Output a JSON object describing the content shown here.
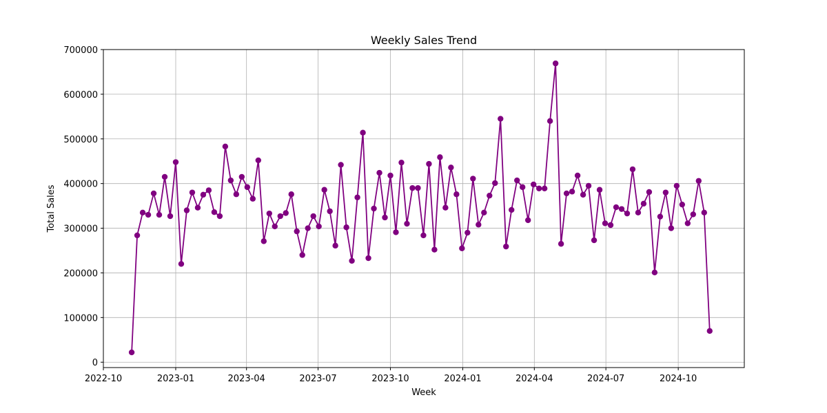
{
  "chart_data": {
    "type": "line",
    "title": "Weekly Sales Trend",
    "xlabel": "Week",
    "ylabel": "Total Sales",
    "x_axis_type": "date",
    "xlim": [
      "2022-10-01",
      "2024-12-24"
    ],
    "ylim": [
      -12000,
      700000
    ],
    "x_ticks": [
      "2022-10-01",
      "2023-01-01",
      "2023-04-01",
      "2023-07-01",
      "2023-10-01",
      "2024-01-01",
      "2024-04-01",
      "2024-07-01",
      "2024-10-01"
    ],
    "x_tick_labels": [
      "2022-10",
      "2023-01",
      "2023-04",
      "2023-07",
      "2023-10",
      "2024-01",
      "2024-04",
      "2024-07",
      "2024-10"
    ],
    "y_ticks": [
      0,
      100000,
      200000,
      300000,
      400000,
      500000,
      600000,
      700000
    ],
    "y_tick_labels": [
      "0",
      "100000",
      "200000",
      "300000",
      "400000",
      "500000",
      "600000",
      "700000"
    ],
    "grid": true,
    "color": "#800080",
    "marker": "circle",
    "series": [
      {
        "dates": [
          "2022-11-06",
          "2022-11-13",
          "2022-11-20",
          "2022-11-27",
          "2022-12-04",
          "2022-12-11",
          "2022-12-18",
          "2022-12-25",
          "2023-01-01",
          "2023-01-08",
          "2023-01-15",
          "2023-01-22",
          "2023-01-29",
          "2023-02-05",
          "2023-02-12",
          "2023-02-19",
          "2023-02-26",
          "2023-03-05",
          "2023-03-12",
          "2023-03-19",
          "2023-03-26",
          "2023-04-02",
          "2023-04-09",
          "2023-04-16",
          "2023-04-23",
          "2023-04-30",
          "2023-05-07",
          "2023-05-14",
          "2023-05-21",
          "2023-05-28",
          "2023-06-04",
          "2023-06-11",
          "2023-06-18",
          "2023-06-25",
          "2023-07-02",
          "2023-07-09",
          "2023-07-16",
          "2023-07-23",
          "2023-07-30",
          "2023-08-06",
          "2023-08-13",
          "2023-08-20",
          "2023-08-27",
          "2023-09-03",
          "2023-09-10",
          "2023-09-17",
          "2023-09-24",
          "2023-10-01",
          "2023-10-08",
          "2023-10-15",
          "2023-10-22",
          "2023-10-29",
          "2023-11-05",
          "2023-11-12",
          "2023-11-19",
          "2023-11-26",
          "2023-12-03",
          "2023-12-10",
          "2023-12-17",
          "2023-12-24",
          "2023-12-31",
          "2024-01-07",
          "2024-01-14",
          "2024-01-21",
          "2024-01-28",
          "2024-02-04",
          "2024-02-11",
          "2024-02-18",
          "2024-02-25",
          "2024-03-03",
          "2024-03-10",
          "2024-03-17",
          "2024-03-24",
          "2024-03-31",
          "2024-04-07",
          "2024-04-14",
          "2024-04-21",
          "2024-04-28",
          "2024-05-05",
          "2024-05-12",
          "2024-05-19",
          "2024-05-26",
          "2024-06-02",
          "2024-06-09",
          "2024-06-16",
          "2024-06-23",
          "2024-06-30",
          "2024-07-07",
          "2024-07-14",
          "2024-07-21",
          "2024-07-28",
          "2024-08-04",
          "2024-08-11",
          "2024-08-18",
          "2024-08-25",
          "2024-09-01",
          "2024-09-08",
          "2024-09-15",
          "2024-09-22",
          "2024-09-29",
          "2024-10-06",
          "2024-10-13",
          "2024-10-20",
          "2024-10-27",
          "2024-11-03",
          "2024-11-10"
        ],
        "values": [
          22000,
          284000,
          335000,
          330000,
          378000,
          330000,
          415000,
          327000,
          448000,
          220000,
          340000,
          380000,
          346000,
          375000,
          385000,
          336000,
          327000,
          483000,
          407000,
          376000,
          415000,
          392000,
          366000,
          452000,
          271000,
          333000,
          304000,
          327000,
          334000,
          376000,
          293000,
          240000,
          300000,
          327000,
          304000,
          386000,
          338000,
          261000,
          442000,
          302000,
          227000,
          369000,
          514000,
          233000,
          344000,
          424000,
          324000,
          418000,
          291000,
          447000,
          310000,
          390000,
          390000,
          284000,
          444000,
          252000,
          459000,
          346000,
          436000,
          376000,
          255000,
          290000,
          411000,
          308000,
          335000,
          373000,
          401000,
          545000,
          259000,
          341000,
          407000,
          392000,
          318000,
          398000,
          389000,
          389000,
          540000,
          669000,
          265000,
          378000,
          382000,
          418000,
          375000,
          395000,
          273000,
          386000,
          311000,
          307000,
          347000,
          343000,
          333000,
          432000,
          335000,
          355000,
          381000,
          201000,
          326000,
          380000,
          300000,
          395000,
          353000,
          311000,
          331000,
          406000,
          335000,
          70000
        ]
      }
    ]
  }
}
